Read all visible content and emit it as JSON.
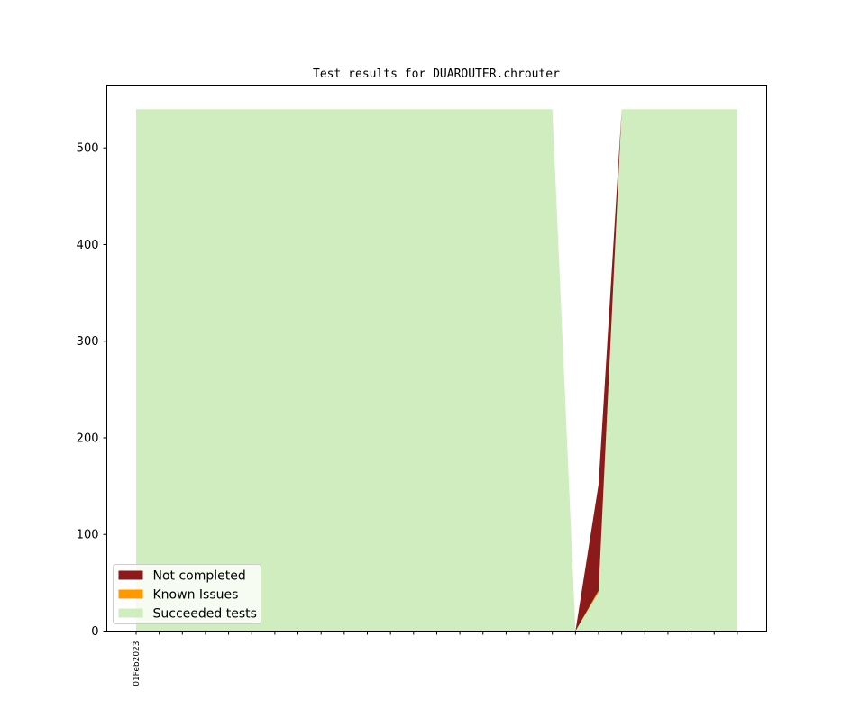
{
  "chart_data": {
    "type": "area",
    "title": "Test results for DUAROUTER.chrouter",
    "xlabel": "",
    "ylabel": "",
    "ylim": [
      0,
      565
    ],
    "yticks": [
      0,
      100,
      200,
      300,
      400,
      500
    ],
    "x": [
      0,
      1,
      2,
      3,
      4,
      5,
      6,
      7,
      8,
      9,
      10,
      11,
      12,
      13,
      14,
      15,
      16,
      17,
      18,
      19,
      20,
      21,
      22,
      23,
      24,
      25,
      26
    ],
    "xtick_labels": [
      "01Feb2023",
      "",
      "",
      "",
      "",
      "",
      "",
      "",
      "",
      "",
      "",
      "",
      "",
      "",
      "",
      "",
      "",
      "",
      "",
      "",
      "",
      "",
      "",
      "",
      "",
      "",
      ""
    ],
    "stacked": true,
    "series": [
      {
        "name": "Succeeded tests",
        "color": "#cfedbf",
        "values": [
          540,
          540,
          540,
          540,
          540,
          540,
          540,
          540,
          540,
          540,
          540,
          540,
          540,
          540,
          540,
          540,
          540,
          540,
          540,
          0,
          40,
          540,
          540,
          540,
          540,
          540,
          540
        ]
      },
      {
        "name": "Known Issues",
        "color": "#ff9900",
        "values": [
          0,
          0,
          0,
          0,
          0,
          0,
          0,
          0,
          0,
          0,
          0,
          0,
          0,
          0,
          0,
          0,
          0,
          0,
          0,
          0,
          2,
          0,
          0,
          0,
          0,
          0,
          0
        ]
      },
      {
        "name": "Not completed",
        "color": "#8b1a1a",
        "values": [
          0,
          0,
          0,
          0,
          0,
          0,
          0,
          0,
          0,
          0,
          0,
          0,
          0,
          0,
          0,
          0,
          0,
          0,
          0,
          0,
          110,
          0,
          0,
          0,
          0,
          0,
          0
        ]
      }
    ],
    "gaps": [
      19
    ],
    "legend": {
      "placement": "lower-left",
      "entries": [
        {
          "label": "Not completed",
          "color": "#8b1a1a"
        },
        {
          "label": "Known Issues",
          "color": "#ff9900"
        },
        {
          "label": "Succeeded tests",
          "color": "#cfedbf"
        }
      ]
    },
    "grid": false
  }
}
